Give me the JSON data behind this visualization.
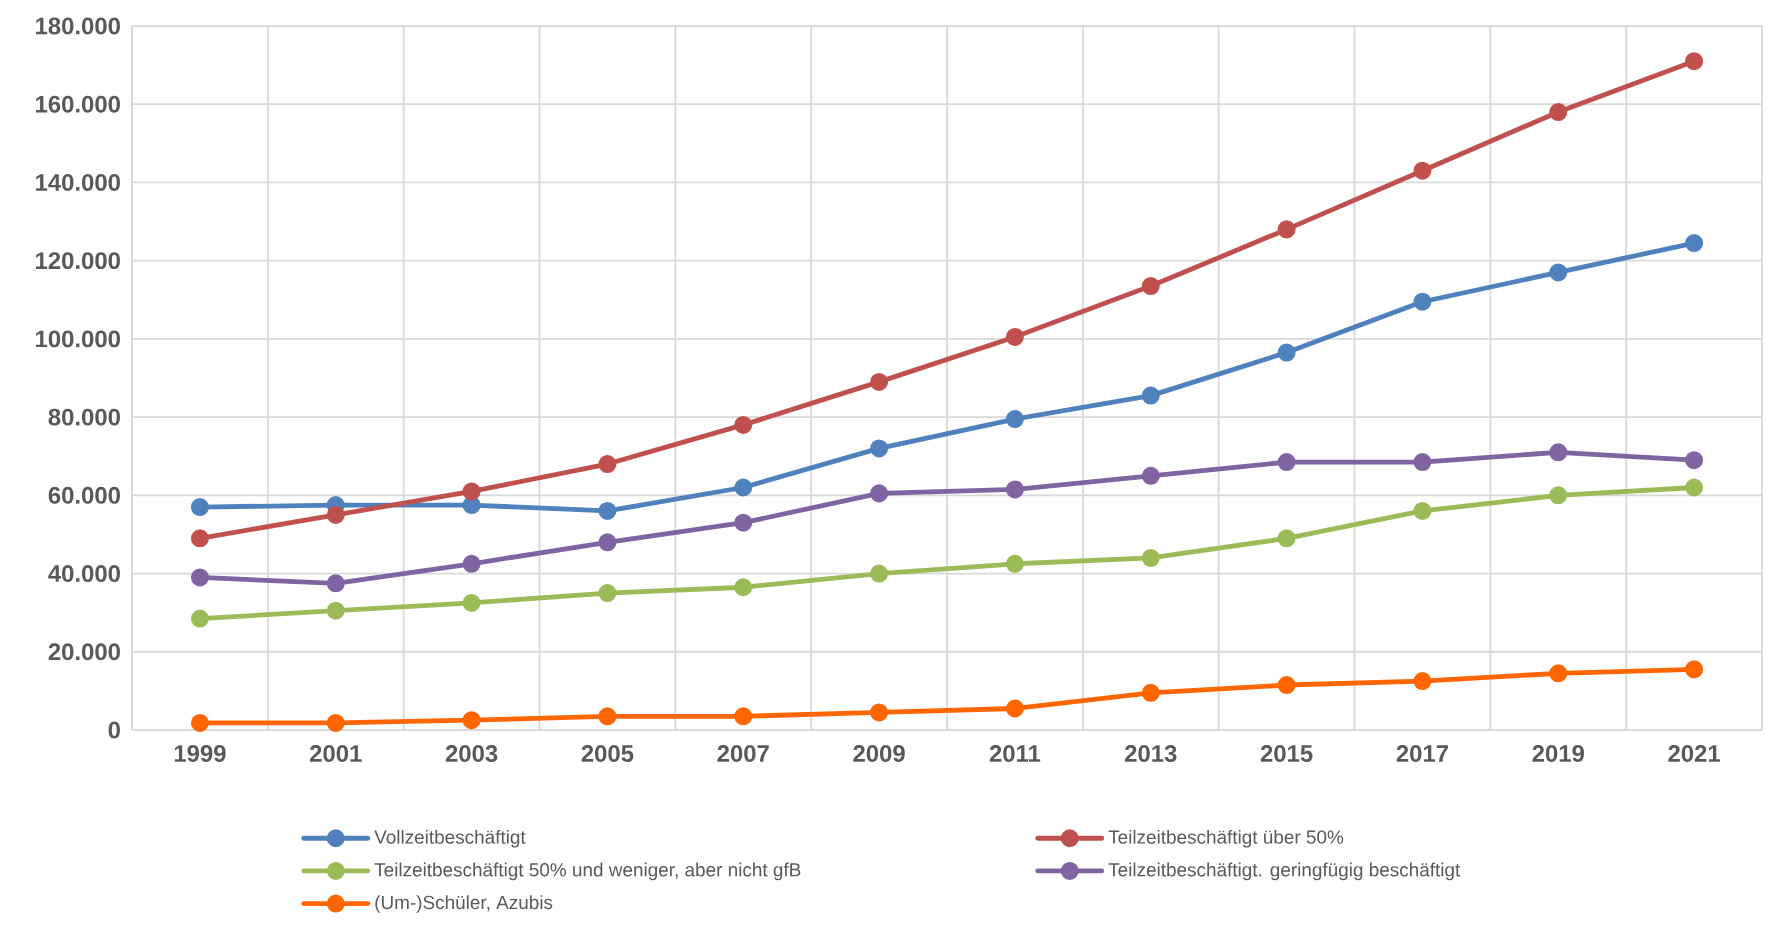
{
  "chart_data": {
    "type": "line",
    "categories": [
      "1999",
      "2001",
      "2003",
      "2005",
      "2007",
      "2009",
      "2011",
      "2013",
      "2015",
      "2017",
      "2019",
      "2021"
    ],
    "series": [
      {
        "name": "Vollzeitbeschäftigt",
        "color": "#4f81bd",
        "values": [
          57000,
          57500,
          57500,
          56000,
          62000,
          72000,
          79500,
          85500,
          96500,
          109500,
          117000,
          124500
        ]
      },
      {
        "name": "Teilzeitbeschäftigt über 50%",
        "color": "#c0504d",
        "values": [
          49000,
          55000,
          61000,
          68000,
          78000,
          89000,
          100500,
          113500,
          128000,
          143000,
          158000,
          171000
        ]
      },
      {
        "name": "Teilzeitbeschäftigt 50% und weniger, aber nicht gfB",
        "color": "#9bbb59",
        "values": [
          28500,
          30500,
          32500,
          35000,
          36500,
          40000,
          42500,
          44000,
          49000,
          56000,
          60000,
          62000
        ]
      },
      {
        "name": "Teilzeitbeschäftigt. geringfügig beschäftigt",
        "color": "#8064a2",
        "values": [
          39000,
          37500,
          42500,
          48000,
          53000,
          60500,
          61500,
          65000,
          68500,
          68500,
          71000,
          69000
        ]
      },
      {
        "name": "(Um-)Schüler, Azubis",
        "color": "#ff6600",
        "values": [
          1800,
          1800,
          2500,
          3500,
          3500,
          4500,
          5500,
          9500,
          11500,
          12500,
          14500,
          15500
        ]
      }
    ],
    "ylim": [
      0,
      180000
    ],
    "yticks": [
      0,
      {
        "value": 20000,
        "label": "20.000"
      },
      {
        "value": 40000,
        "label": "40.000"
      },
      {
        "value": 60000,
        "label": "60.000"
      },
      {
        "value": 80000,
        "label": "80.000"
      },
      {
        "value": 100000,
        "label": "100.000"
      },
      {
        "value": 120000,
        "label": "120.000"
      },
      {
        "value": 140000,
        "label": "140.000"
      },
      {
        "value": 160000,
        "label": "160.000"
      },
      {
        "value": 180000,
        "label": "180.000"
      }
    ],
    "grid": true,
    "legend": "bottom",
    "marker": "circle",
    "line_style": "solid"
  }
}
